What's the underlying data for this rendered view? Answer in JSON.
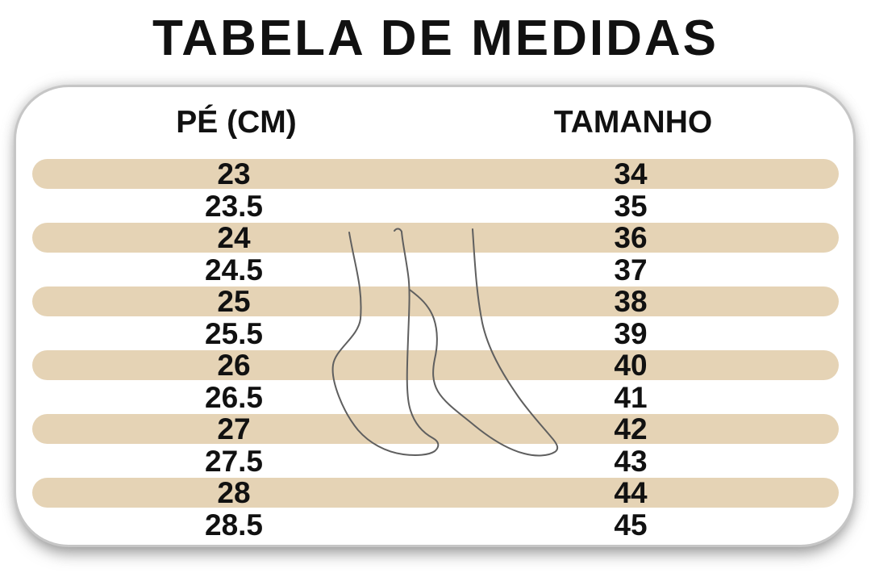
{
  "title": "TABELA DE MEDIDAS",
  "table": {
    "col_pe": "PÉ (CM)",
    "col_tamanho": "TAMANHO",
    "rows": [
      [
        "23",
        "34"
      ],
      [
        "23.5",
        "35"
      ],
      [
        "24",
        "36"
      ],
      [
        "24.5",
        "37"
      ],
      [
        "25",
        "38"
      ],
      [
        "25.5",
        "39"
      ],
      [
        "26",
        "40"
      ],
      [
        "26.5",
        "41"
      ],
      [
        "27",
        "42"
      ],
      [
        "27.5",
        "43"
      ],
      [
        "28",
        "44"
      ],
      [
        "28.5",
        "45"
      ]
    ]
  },
  "illustration": {
    "name": "feet-line-drawing"
  },
  "colors": {
    "stripe": "#e5d3b5",
    "panel_border": "#c6c6c6",
    "text": "#111111",
    "foot_line": "#5f5f5f"
  }
}
